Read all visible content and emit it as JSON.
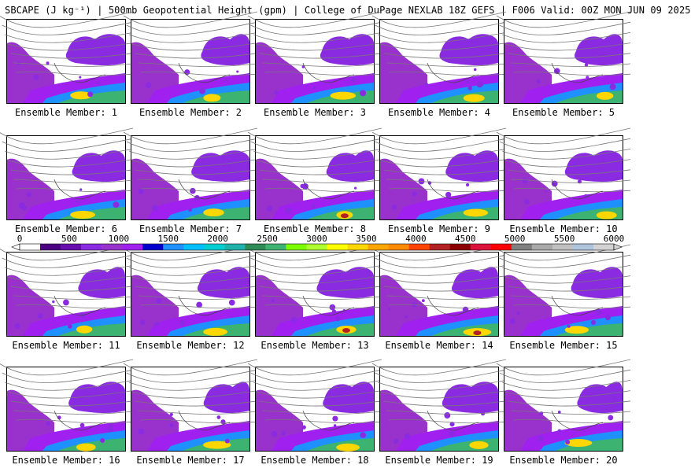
{
  "title": "SBCAPE (J kg⁻¹) | 500mb Geopotential Height (gpm) | College of DuPage NEXLAB 18Z GEFS | F006 Valid: 00Z MON JUN 09 2025",
  "members": [
    "Ensemble Member: 1",
    "Ensemble Member: 2",
    "Ensemble Member: 3",
    "Ensemble Member: 4",
    "Ensemble Member: 5",
    "Ensemble Member: 6",
    "Ensemble Member: 7",
    "Ensemble Member: 8",
    "Ensemble Member: 9",
    "Ensemble Member: 10",
    "Ensemble Member: 11",
    "Ensemble Member: 12",
    "Ensemble Member: 13",
    "Ensemble Member: 14",
    "Ensemble Member: 15",
    "Ensemble Member: 16",
    "Ensemble Member: 17",
    "Ensemble Member: 18",
    "Ensemble Member: 19",
    "Ensemble Member: 20"
  ],
  "colorbar": {
    "ticks": [
      "0",
      "500",
      "1000",
      "1500",
      "2000",
      "2500",
      "3000",
      "3500",
      "4000",
      "4500",
      "5000",
      "5500",
      "6000"
    ],
    "min": 0,
    "max": 6000,
    "colors": [
      "#ffffff",
      "#4b0082",
      "#6a0dad",
      "#8a2be2",
      "#9932cc",
      "#a020f0",
      "#0000cd",
      "#1e90ff",
      "#00bfff",
      "#00ced1",
      "#20b2aa",
      "#2e8b57",
      "#3cb371",
      "#7cfc00",
      "#adff2f",
      "#ffff00",
      "#ffd700",
      "#ffa500",
      "#ff8c00",
      "#ff4500",
      "#b22222",
      "#8b0000",
      "#dc143c",
      "#ff0000",
      "#808080",
      "#a9a9a9",
      "#c0c0c0",
      "#b0c4de",
      "#d3d3d3"
    ]
  }
}
